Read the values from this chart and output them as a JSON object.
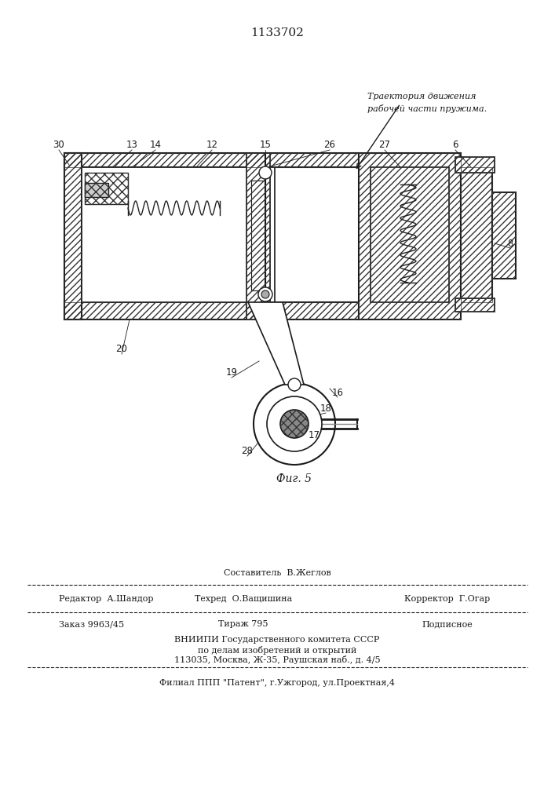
{
  "patent_number": "1133702",
  "annotation_text": "Траектория движения\nрабочей части пружима.",
  "fig_label": "Фиг. 5",
  "bg_color": "#ffffff",
  "line_color": "#1a1a1a",
  "hatch_color": "#333333",
  "bottom_texts": {
    "составитель": "Составитель  В.Жеглов",
    "редактор": "Редактор  А.Шандор",
    "техред": "Техред  О.Ващишина",
    "корректор": "Корректор  Г.Огар",
    "заказ": "Заказ 9963/45",
    "тираж": "Тираж 795",
    "подписное": "Подписное",
    "вниипи1": "ВНИИПИ Государственного комитета СССР",
    "вниипи2": "по делам изобретений и открытий",
    "вниипи3": "113035, Москва, Ж-35, Раушская наб., д. 4/5",
    "филиал": "Филиал ППП \"Патент\", г.Ужгород, ул.Проектная,4"
  }
}
